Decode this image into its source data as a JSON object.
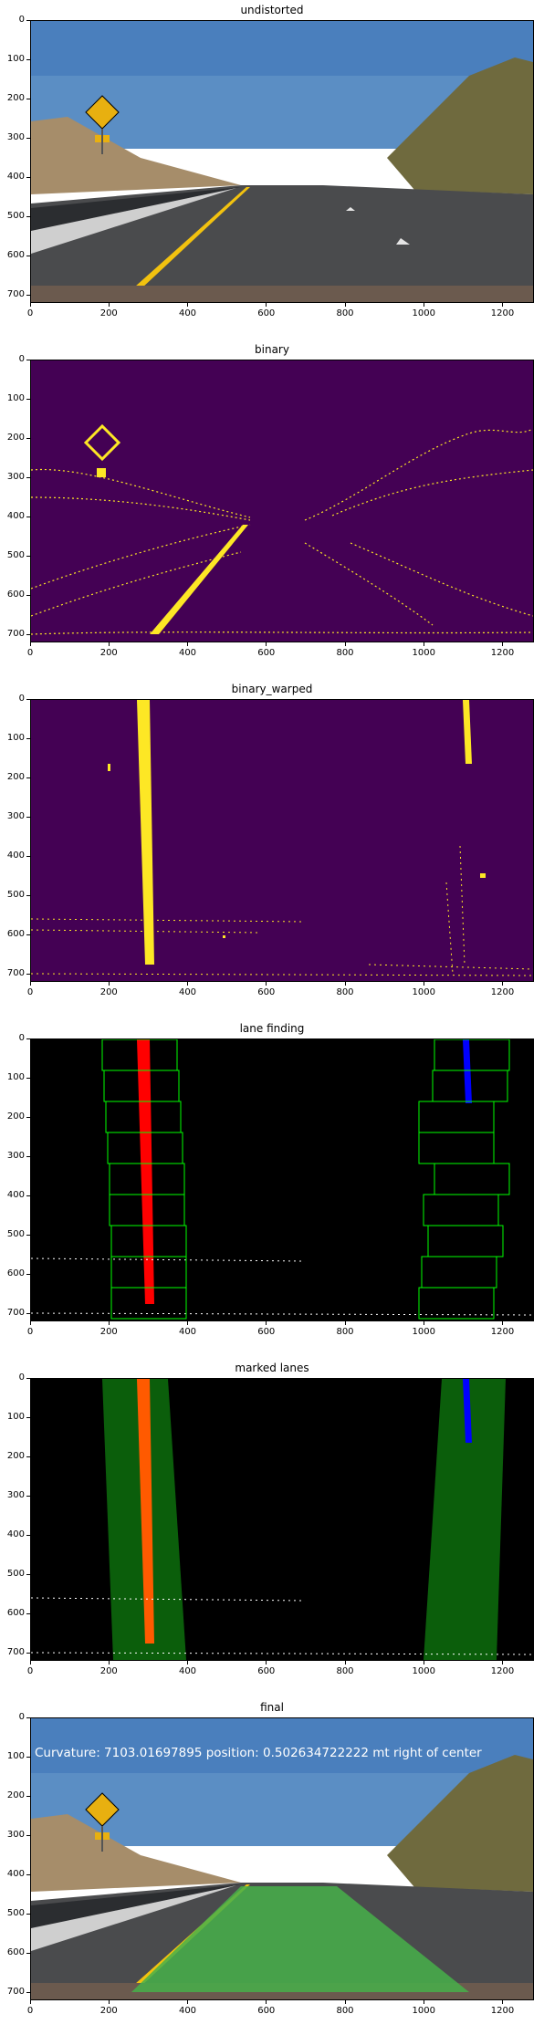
{
  "chart_data": [
    {
      "type": "image",
      "title": "undistorted",
      "xticks": [
        "0",
        "200",
        "400",
        "600",
        "800",
        "1000",
        "1200"
      ],
      "yticks": [
        "0",
        "100",
        "200",
        "300",
        "400",
        "500",
        "600",
        "700"
      ],
      "xlim": [
        0,
        1280
      ],
      "ylim": [
        720,
        0
      ]
    },
    {
      "type": "image",
      "title": "binary",
      "xticks": [
        "0",
        "200",
        "400",
        "600",
        "800",
        "1000",
        "1200"
      ],
      "yticks": [
        "0",
        "100",
        "200",
        "300",
        "400",
        "500",
        "600",
        "700"
      ],
      "xlim": [
        0,
        1280
      ],
      "ylim": [
        720,
        0
      ]
    },
    {
      "type": "image",
      "title": "binary_warped",
      "xticks": [
        "0",
        "200",
        "400",
        "600",
        "800",
        "1000",
        "1200"
      ],
      "yticks": [
        "0",
        "100",
        "200",
        "300",
        "400",
        "500",
        "600",
        "700"
      ],
      "xlim": [
        0,
        1280
      ],
      "ylim": [
        720,
        0
      ]
    },
    {
      "type": "image",
      "title": "lane finding",
      "xticks": [
        "0",
        "200",
        "400",
        "600",
        "800",
        "1000",
        "1200"
      ],
      "yticks": [
        "0",
        "100",
        "200",
        "300",
        "400",
        "500",
        "600",
        "700"
      ],
      "xlim": [
        0,
        1280
      ],
      "ylim": [
        720,
        0
      ]
    },
    {
      "type": "image",
      "title": "marked lanes",
      "xticks": [
        "0",
        "200",
        "400",
        "600",
        "800",
        "1000",
        "1200"
      ],
      "yticks": [
        "0",
        "100",
        "200",
        "300",
        "400",
        "500",
        "600",
        "700"
      ],
      "xlim": [
        0,
        1280
      ],
      "ylim": [
        720,
        0
      ]
    },
    {
      "type": "image",
      "title": "final",
      "xticks": [
        "0",
        "200",
        "400",
        "600",
        "800",
        "1000",
        "1200"
      ],
      "yticks": [
        "0",
        "100",
        "200",
        "300",
        "400",
        "500",
        "600",
        "700"
      ],
      "xlim": [
        0,
        1280
      ],
      "ylim": [
        720,
        0
      ],
      "annotation": "Curvature: 7103.01697895 position: 0.502634722222 mt right of center"
    }
  ],
  "colors": {
    "viridis_dark": "#440154",
    "viridis_yellow": "#fde725",
    "sky": "#5b8ec4",
    "road": "#4a4b4d",
    "lane_green": "#0b5e0b",
    "fill_green": "#46b04a",
    "red": "#ff0000",
    "blue": "#0000ff",
    "orange": "#ff5a00",
    "window_green": "#00ff00"
  }
}
